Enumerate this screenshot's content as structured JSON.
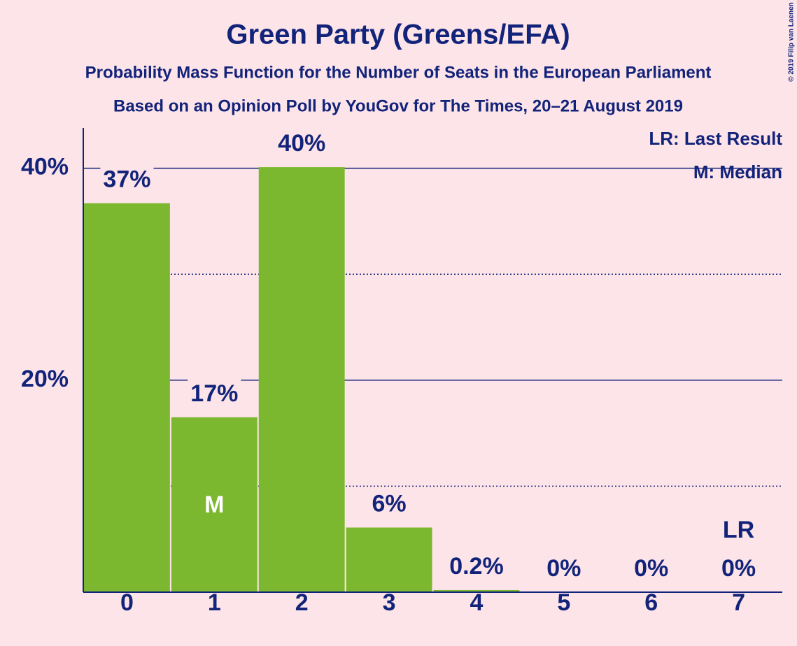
{
  "chart_data": {
    "type": "bar",
    "title": "Green Party (Greens/EFA)",
    "subtitle": "Probability Mass Function for the Number of Seats in the European Parliament",
    "subtitle2": "Based on an Opinion Poll by YouGov for The Times, 20–21 August 2019",
    "categories": [
      "0",
      "1",
      "2",
      "3",
      "4",
      "5",
      "6",
      "7"
    ],
    "values": [
      36.7,
      16.5,
      40.1,
      6.1,
      0.2,
      0,
      0,
      0
    ],
    "value_labels": [
      "37%",
      "17%",
      "40%",
      "6%",
      "0.2%",
      "0%",
      "0%",
      "0%"
    ],
    "color": "#7cb82f",
    "ylim": [
      0,
      43.8
    ],
    "yticks": [
      {
        "value": 20,
        "label": "20%"
      },
      {
        "value": 40,
        "label": "40%"
      }
    ],
    "minor_yticks": [
      10,
      30
    ],
    "grid": true,
    "markers": [
      {
        "index": 1,
        "label": "M"
      },
      {
        "index": 7,
        "label": "LR"
      }
    ],
    "legend": [
      "LR: Last Result",
      "M: Median"
    ],
    "copyright": "© 2019 Filip van Laenen"
  }
}
